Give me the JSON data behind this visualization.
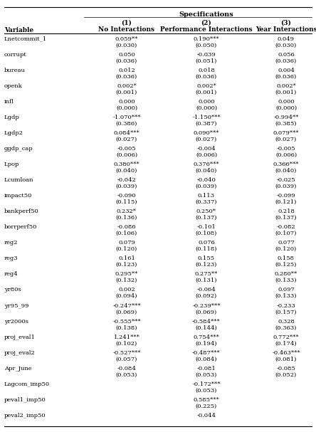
{
  "title": "Specifications",
  "col_headers": [
    "(1)",
    "(2)",
    "(3)"
  ],
  "col_subheaders": [
    "No Interactions",
    "Performance Interactions",
    "Year Interactions"
  ],
  "var_label": "Variable",
  "rows": [
    {
      "var": "Lnetcommit_1",
      "c1": "0.059**",
      "se1": "(0.030)",
      "c2": "0.190***",
      "se2": "(0.050)",
      "c3": "0.049",
      "se3": "(0.030)"
    },
    {
      "var": "corrupt",
      "c1": "0.050",
      "se1": "(0.036)",
      "c2": "-0.039",
      "se2": "(0.051)",
      "c3": "0.056",
      "se3": "(0.036)"
    },
    {
      "var": "bureau",
      "c1": "0.012",
      "se1": "(0.036)",
      "c2": "0.018",
      "se2": "(0.036)",
      "c3": "0.004",
      "se3": "(0.036)"
    },
    {
      "var": "openk",
      "c1": "0.002*",
      "se1": "(0.001)",
      "c2": "0.002*",
      "se2": "(0.001)",
      "c3": "0.002*",
      "se3": "(0.001)"
    },
    {
      "var": "infl",
      "c1": "0.000",
      "se1": "(0.000)",
      "c2": "0.000",
      "se2": "(0.000)",
      "c3": "0.000",
      "se3": "(0.000)"
    },
    {
      "var": "Lgdp",
      "c1": "-1.070***",
      "se1": "(0.386)",
      "c2": "-1.150***",
      "se2": "(0.387)",
      "c3": "-0.994**",
      "se3": "(0.385)"
    },
    {
      "var": "Lgdp2",
      "c1": "0.084***",
      "se1": "(0.027)",
      "c2": "0.090***",
      "se2": "(0.027)",
      "c3": "0.079***",
      "se3": "(0.027)"
    },
    {
      "var": "ggdp_cap",
      "c1": "-0.005",
      "se1": "(0.006)",
      "c2": "-0.004",
      "se2": "(0.006)",
      "c3": "-0.005",
      "se3": "(0.006)"
    },
    {
      "var": "Lpop",
      "c1": "0.380***",
      "se1": "(0.040)",
      "c2": "0.376***",
      "se2": "(0.040)",
      "c3": "0.366***",
      "se3": "(0.040)"
    },
    {
      "var": "Lcumloan",
      "c1": "-0.042",
      "se1": "(0.039)",
      "c2": "-0.040",
      "se2": "(0.039)",
      "c3": "-0.025",
      "se3": "(0.039)"
    },
    {
      "var": "impact50",
      "c1": "-0.090",
      "se1": "(0.115)",
      "c2": "0.113",
      "se2": "(0.337)",
      "c3": "-0.099",
      "se3": "(0.121)"
    },
    {
      "var": "bankperf50",
      "c1": "0.232*",
      "se1": "(0.136)",
      "c2": "0.250*",
      "se2": "(0.137)",
      "c3": "0.218",
      "se3": "(0.137)"
    },
    {
      "var": "borrperf50",
      "c1": "-0.086",
      "se1": "(0.106)",
      "c2": "-0.101",
      "se2": "(0.108)",
      "c3": "-0.082",
      "se3": "(0.107)"
    },
    {
      "var": "reg2",
      "c1": "0.079",
      "se1": "(0.120)",
      "c2": "0.076",
      "se2": "(0.118)",
      "c3": "0.077",
      "se3": "(0.120)"
    },
    {
      "var": "reg3",
      "c1": "0.161",
      "se1": "(0.123)",
      "c2": "0.155",
      "se2": "(0.123)",
      "c3": "0.158",
      "se3": "(0.125)"
    },
    {
      "var": "reg4",
      "c1": "0.295**",
      "se1": "(0.132)",
      "c2": "0.275**",
      "se2": "(0.131)",
      "c3": "0.280**",
      "se3": "(0.133)"
    },
    {
      "var": "yr80s",
      "c1": "0.002",
      "se1": "(0.094)",
      "c2": "-0.064",
      "se2": "(0.092)",
      "c3": "0.097",
      "se3": "(0.133)"
    },
    {
      "var": "yr95_99",
      "c1": "-0.247***",
      "se1": "(0.069)",
      "c2": "-0.239***",
      "se2": "(0.069)",
      "c3": "-0.233",
      "se3": "(0.157)"
    },
    {
      "var": "yr2000s",
      "c1": "-0.555***",
      "se1": "(0.138)",
      "c2": "-0.584***",
      "se2": "(0.144)",
      "c3": "0.328",
      "se3": "(0.363)"
    },
    {
      "var": "proj_eval1",
      "c1": "1.241***",
      "se1": "(0.102)",
      "c2": "0.754***",
      "se2": "(0.194)",
      "c3": "0.772***",
      "se3": "(0.174)"
    },
    {
      "var": "proj_eval2",
      "c1": "-0.527***",
      "se1": "(0.057)",
      "c2": "-0.487***",
      "se2": "(0.084)",
      "c3": "-0.463***",
      "se3": "(0.081)"
    },
    {
      "var": "Apr_June",
      "c1": "-0.084",
      "se1": "(0.053)",
      "c2": "-0.081",
      "se2": "(0.053)",
      "c3": "-0.085",
      "se3": "(0.052)"
    },
    {
      "var": "Lagcom_imp50",
      "c1": "",
      "se1": "",
      "c2": "-0.172***",
      "se2": "(0.053)",
      "c3": "",
      "se3": ""
    },
    {
      "var": "peval1_imp50",
      "c1": "",
      "se1": "",
      "c2": "0.585***",
      "se2": "(0.225)",
      "c3": "",
      "se3": ""
    },
    {
      "var": "peval2_imp50",
      "c1": "",
      "se1": "",
      "c2": "-0.044",
      "se2": "",
      "c3": "",
      "se3": ""
    }
  ],
  "figwidth": 4.44,
  "figheight": 6.07,
  "dpi": 100
}
